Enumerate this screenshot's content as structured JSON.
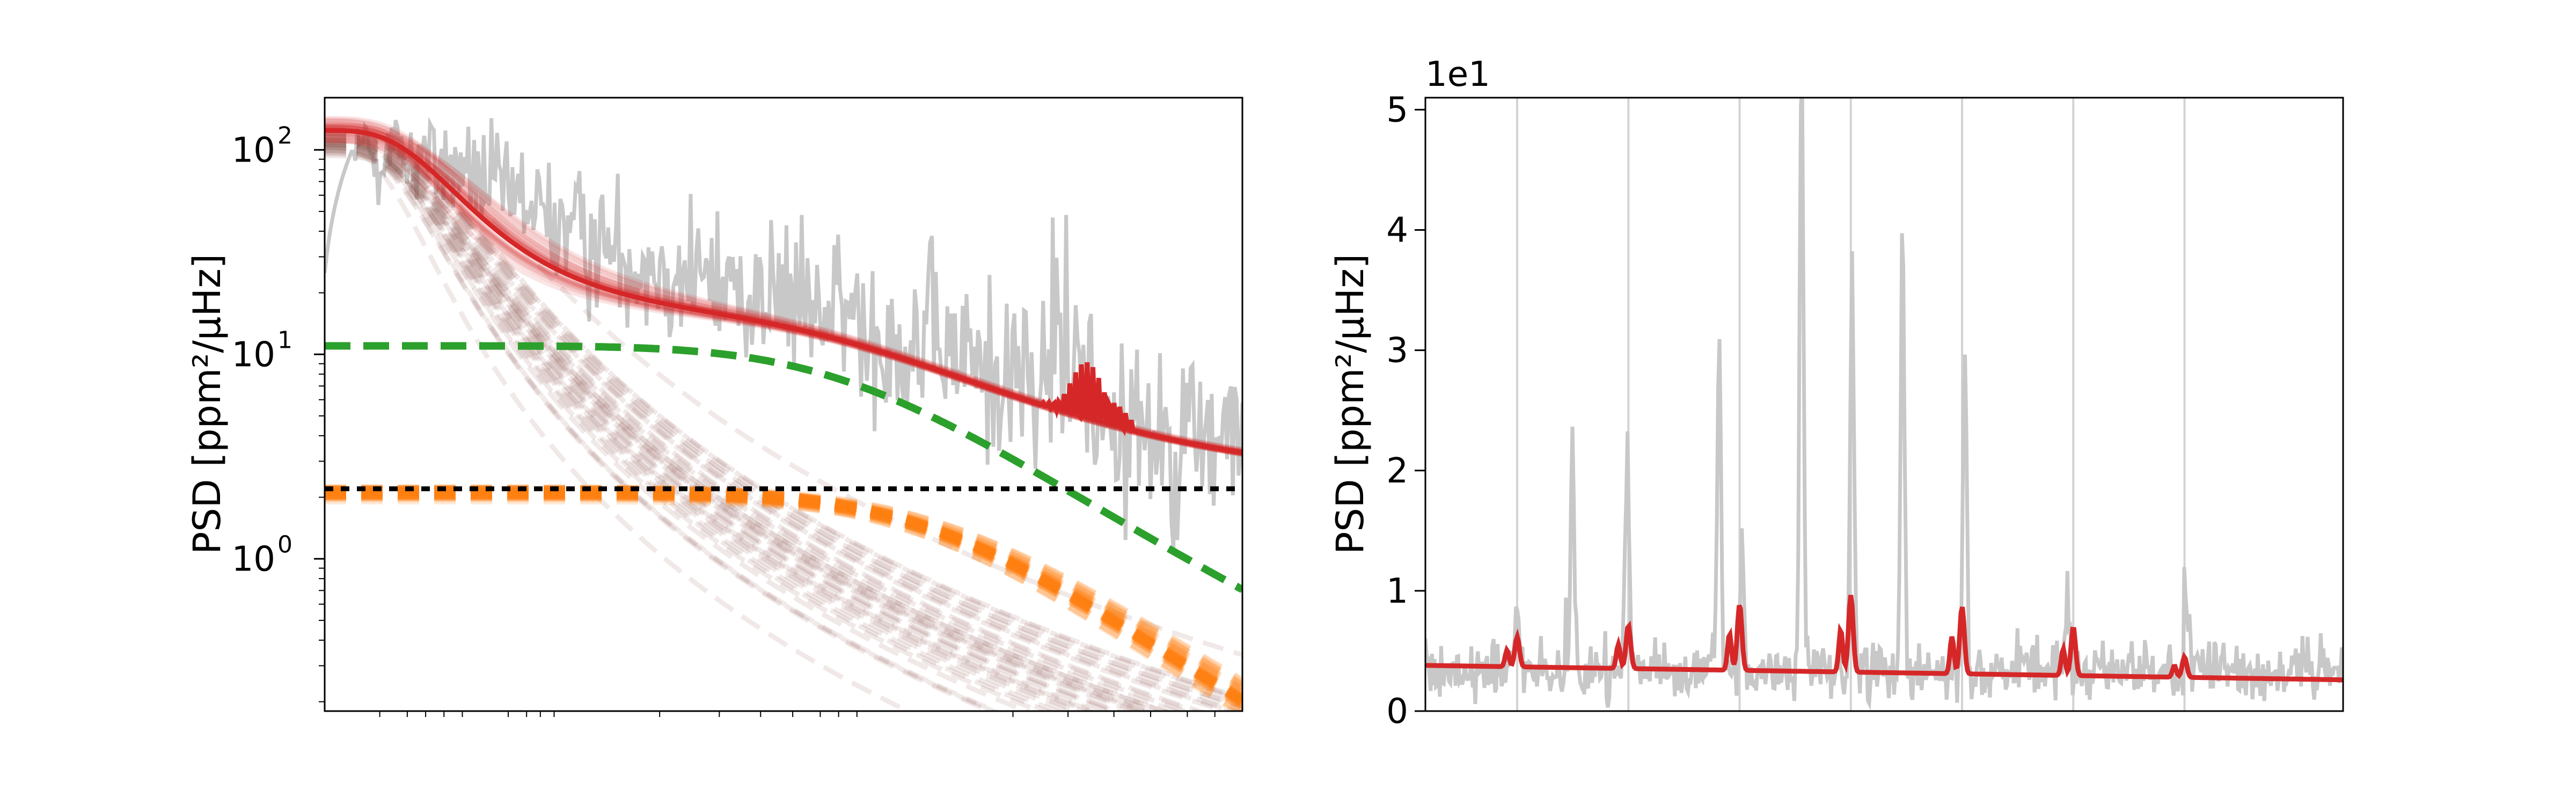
{
  "chart_data": [
    {
      "type": "line",
      "panel": "left",
      "xscale": "log",
      "yscale": "log",
      "xlabel": "",
      "ylabel": "PSD [ppm²/μHz]",
      "ylim": [
        0.18,
        180
      ],
      "yticks": [
        1,
        10,
        100
      ],
      "ytick_labels": [
        "10",
        "10",
        "10"
      ],
      "ytick_exponents": [
        "0",
        "1",
        "2"
      ],
      "xtick_labels": [],
      "grid": false,
      "colors": {
        "observed_psd": "#c8c8c8",
        "model_samples": "#d62728",
        "model_best": "#d62728",
        "granulation_dashed": "#2ca02c",
        "activity_dashed": "#ff7f0e",
        "low_freq_samples": "#8c564b",
        "white_noise": "#000000"
      },
      "series": [
        {
          "role": "white-noise-level",
          "style": "dotted-black",
          "level": 2.2
        },
        {
          "role": "granulation-component",
          "style": "green-dashed",
          "level": 11
        },
        {
          "role": "activity-component",
          "style": "orange-dashed",
          "level": 2.2
        },
        {
          "role": "low-frequency-component",
          "style": "brown-dashed-samples",
          "start_level": 110
        },
        {
          "role": "total-model",
          "style": "red-solid",
          "start_level": 130,
          "plateau_level": 15,
          "end_level": 2.2
        }
      ]
    },
    {
      "type": "line",
      "panel": "right",
      "xlabel": "",
      "ylabel": "PSD [ppm²/μHz]",
      "ylim": [
        0,
        51
      ],
      "yticks": [
        0,
        10,
        20,
        30,
        40,
        50
      ],
      "ytick_labels": [
        "0",
        "1",
        "2",
        "3",
        "4",
        "5"
      ],
      "offset_text": "1e1",
      "xtick_labels": [],
      "grid": false,
      "vertical_marker_count": 7,
      "colors": {
        "observed_psd": "#c8c8c8",
        "model": "#d62728",
        "markers": "#d3d3d3"
      },
      "model_background": {
        "start": 3.8,
        "end": 2.6
      },
      "mode_peaks": [
        {
          "index": 1,
          "height": 5.5
        },
        {
          "index": 2,
          "height": 6.6
        },
        {
          "index": 3,
          "height": 8.5
        },
        {
          "index": 4,
          "height": 9.4
        },
        {
          "index": 5,
          "height": 8.6
        },
        {
          "index": 6,
          "height": 7.0
        },
        {
          "index": 7,
          "height": 4.7
        }
      ]
    }
  ]
}
